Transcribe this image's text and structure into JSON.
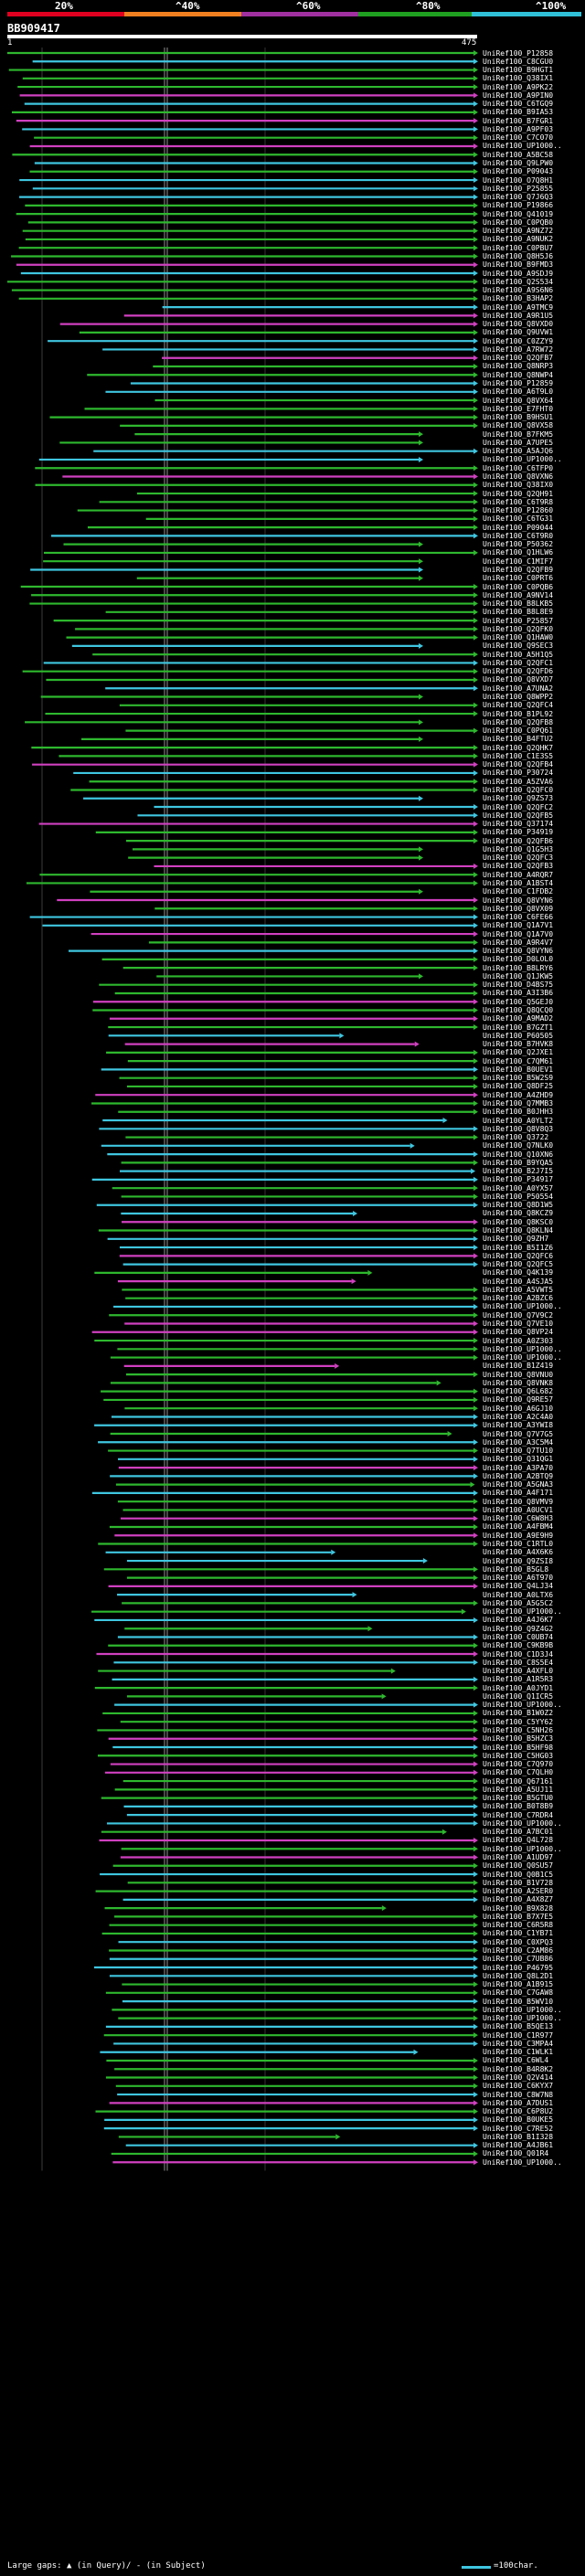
{
  "legend": {
    "labels": [
      "20%",
      "^40%",
      "^60%",
      "^80%",
      "^100%"
    ],
    "colors": [
      "#e00020",
      "#f08020",
      "#a030a0",
      "#20a020",
      "#30c0d8"
    ]
  },
  "query": {
    "id": "BB909417",
    "start": "1",
    "end": "475"
  },
  "series_colors": {
    "green": "#2eb82e",
    "cyan": "#3fc6e0",
    "magenta": "#d040c0"
  },
  "hits": [
    "UniRef100_P12858",
    "UniRef100_C8CGU0",
    "UniRef100_B9HGT1",
    "UniRef100_Q38IX1",
    "UniRef100_A9PK22",
    "UniRef100_A9PIN0",
    "UniRef100_C6TGQ9",
    "UniRef100_B9IA53",
    "UniRef100_B7FGR1",
    "UniRef100_A9PF03",
    "UniRef100_C7C070",
    "UniRef100_UP1000..",
    "UniRef100_A5BC58",
    "UniRef100_Q9LPW0",
    "UniRef100_P09043",
    "UniRef100_O7Q8H1",
    "UniRef100_P25855",
    "UniRef100_Q7J6Q3",
    "UniRef100_P19866",
    "UniRef100_Q41019",
    "UniRef100_C0PQB0",
    "UniRef100_A9NZ72",
    "UniRef100_A9NUK2",
    "UniRef100_C0PBU7",
    "UniRef100_Q8H5J6",
    "UniRef100_B9FMD3",
    "UniRef100_A9SDJ9",
    "UniRef100_Q2S534",
    "UniRef100_A9S6N6",
    "UniRef100_B3HAP2",
    "UniRef100_A9TMC9",
    "UniRef100_A9R1U5",
    "UniRef100_Q8VXD0",
    "UniRef100_Q9UVW1",
    "UniRef100_C0ZZY9",
    "UniRef100_A7RW72",
    "UniRef100_Q2QFB7",
    "UniRef100_Q8NRP3",
    "UniRef100_Q8NWP4",
    "UniRef100_P12859",
    "UniRef100_A6T9L0",
    "UniRef100_Q8VX64",
    "UniRef100_E7FHT0",
    "UniRef100_B9HSU1",
    "UniRef100_Q8VX58",
    "UniRef100_B7FKM5",
    "UniRef100_A7UPE5",
    "UniRef100_A5AJQ6",
    "UniRef100_UP1000..",
    "UniRef100_C6TFP0",
    "UniRef100_Q8VXN6",
    "UniRef100_Q38IX0",
    "UniRef100_Q2QH91",
    "UniRef100_C6T9R8",
    "UniRef100_P12860",
    "UniRef100_C6TG31",
    "UniRef100_P09044",
    "UniRef100_C6T9R0",
    "UniRef100_P50362",
    "UniRef100_Q1HLW6",
    "UniRef100_C1MIF7",
    "UniRef100_Q2QFB9",
    "UniRef100_C0PRT6",
    "UniRef100_C0PQB6",
    "UniRef100_A9NV14",
    "UniRef100_B8LKB5",
    "UniRef100_B8L8E9",
    "UniRef100_P25857",
    "UniRef100_Q2QFK0",
    "UniRef100_Q1HAW0",
    "UniRef100_Q9SEC3",
    "UniRef100_A5H1Q5",
    "UniRef100_Q2QFC1",
    "UniRef100_Q2QFD6",
    "UniRef100_Q8VXD7",
    "UniRef100_A7UNA2",
    "UniRef100_Q8WPP2",
    "UniRef100_Q2QFC4",
    "UniRef100_B1PL92",
    "UniRef100_Q2QFB8",
    "UniRef100_C0PQ61",
    "UniRef100_B4FTU2",
    "UniRef100_Q2QHK7",
    "UniRef100_C1E3S5",
    "UniRef100_Q2QFB4",
    "UniRef100_P30724",
    "UniRef100_A5ZVA6",
    "UniRef100_Q2QFC0",
    "UniRef100_Q9ZS73",
    "UniRef100_Q2QFC2",
    "UniRef100_Q2QFB5",
    "UniRef100_Q37174",
    "UniRef100_P34919",
    "UniRef100_Q2QFB6",
    "UniRef100_Q1G5H3",
    "UniRef100_Q2QFC3",
    "UniRef100_Q2QFB3",
    "UniRef100_A4RQR7",
    "UniRef100_A1BST4",
    "UniRef100_C1FDB2",
    "UniRef100_Q8VYN6",
    "UniRef100_Q8VX09",
    "UniRef100_C6FE66",
    "UniRef100_Q1A7V1",
    "UniRef100_Q1A7V0",
    "UniRef100_A9R4V7",
    "UniRef100_Q8VYN6",
    "UniRef100_D0LOL0",
    "UniRef100_B8LRY6",
    "UniRef100_Q1JKW5",
    "UniRef100_D4BS75",
    "UniRef100_A3I3B6",
    "UniRef100_Q5GEJ0",
    "UniRef100_Q8QCQ0",
    "UniRef100_A9MAD2",
    "UniRef100_B7GZT1",
    "UniRef100_P60505",
    "UniRef100_B7HVK8",
    "UniRef100_Q2JXE1",
    "UniRef100_C7QM61",
    "UniRef100_B0UEV1",
    "UniRef100_B5W2S9",
    "UniRef100_Q8DF25",
    "UniRef100_A4ZHD9",
    "UniRef100_Q7MMB3",
    "UniRef100_B0JHH3",
    "UniRef100_A0YLT2",
    "UniRef100_Q8V8Q3",
    "UniRef100_Q3722",
    "UniRef100_Q7NLK0",
    "UniRef100_Q10XN6",
    "UniRef100_B9YQA5",
    "UniRef100_B2J7I5",
    "UniRef100_P34917",
    "UniRef100_A0YX57",
    "UniRef100_P50554",
    "UniRef100_Q8D1W5",
    "UniRef100_Q8KCZ9",
    "UniRef100_Q8KSC0",
    "UniRef100_Q8KLN4",
    "UniRef100_Q9ZH7",
    "UniRef100_B5I1Z6",
    "UniRef100_Q2QFC6",
    "UniRef100_Q2QFC5",
    "UniRef100_Q4K139",
    "UniRef100_A4SJA5",
    "UniRef100_A5VWT5",
    "UniRef100_A2BZC6",
    "UniRef100_UP1000..",
    "UniRef100_Q7V9C2",
    "UniRef100_Q7VE10",
    "UniRef100_Q8VP24",
    "UniRef100_A0Z303",
    "UniRef100_UP1000..",
    "UniRef100_UP1000..",
    "UniRef100_B1Z419",
    "UniRef100_Q8VNU0",
    "UniRef100_Q8VNK8",
    "UniRef100_Q6L682",
    "UniRef100_Q9RE57",
    "UniRef100_A6GJ10",
    "UniRef100_A2C4A0",
    "UniRef100_A3YWI8",
    "UniRef100_Q7V7G5",
    "UniRef100_A3C5M4",
    "UniRef100_Q7TU10",
    "UniRef100_Q31QG1",
    "UniRef100_A3PA70",
    "UniRef100_A2BTQ9",
    "UniRef100_A5GNA3",
    "UniRef100_A4F171",
    "UniRef100_Q8VMV9",
    "UniRef100_A0UCV1",
    "UniRef100_C6W8H3",
    "UniRef100_A4FBM4",
    "UniRef100_A9E9H9",
    "UniRef100_C1RTL0",
    "UniRef100_A4X6K6",
    "UniRef100_Q9ZSI8",
    "UniRef100_B5GL8",
    "UniRef100_A6T970",
    "UniRef100_Q4LJ34",
    "UniRef100_A0LTX6",
    "UniRef100_A5G5C2",
    "UniRef100_UP1000..",
    "UniRef100_A4J6K7",
    "UniRef100_Q9Z4G2",
    "UniRef100_C0UB74",
    "UniRef100_C9KB9B",
    "UniRef100_C1D3J4",
    "UniRef100_C8S5E4",
    "UniRef100_A4XFL0",
    "UniRef100_A1R5R3",
    "UniRef100_A0JYD1",
    "UniRef100_Q1ICR5",
    "UniRef100_UP1000..",
    "UniRef100_B1W0Z2",
    "UniRef100_C5YY62",
    "UniRef100_C5NH26",
    "UniRef100_B5HZC3",
    "UniRef100_B5HF98",
    "UniRef100_C5HG03",
    "UniRef100_C7Q970",
    "UniRef100_C7QLH0",
    "UniRef100_Q67161",
    "UniRef100_A5UJ11",
    "UniRef100_B5GTU0",
    "UniRef100_B0T8B9",
    "UniRef100_C7RDR4",
    "UniRef100_UP1000..",
    "UniRef100_A7BC01",
    "UniRef100_Q4L728",
    "UniRef100_UP1000..",
    "UniRef100_A1UD97",
    "UniRef100_Q0SU57",
    "UniRef100_Q0B1C5",
    "UniRef100_B1V728",
    "UniRef100_A2SER0",
    "UniRef100_A4X8Z7",
    "UniRef100_B9X828",
    "UniRef100_B7X7E5",
    "UniRef100_C6R5R8",
    "UniRef100_C1YB71",
    "UniRef100_C0XPQ3",
    "UniRef100_C2AM86",
    "UniRef100_C7UB86",
    "UniRef100_P46795",
    "UniRef100_Q8L2D1",
    "UniRef100_A1B915",
    "UniRef100_C7GAW8",
    "UniRef100_B5WV10",
    "UniRef100_UP1000..",
    "UniRef100_UP1000..",
    "UniRef100_B5QE13",
    "UniRef100_C1R977",
    "UniRef100_C3MPA4",
    "UniRef100_C1WLK1",
    "UniRef100_C6WL4",
    "UniRef100_B4R8K2",
    "UniRef100_Q2V414",
    "UniRef100_C6KYX7",
    "UniRef100_C8W7N8",
    "UniRef100_A7DUS1",
    "UniRef100_C6P8U2",
    "UniRef100_B0UKE5",
    "UniRef100_C7RE52",
    "UniRef100_B1I328",
    "UniRef100_A4JB61",
    "UniRef100_Q01R4",
    "UniRef100_UP1000.."
  ],
  "footer": {
    "large_gaps_label": "Large gaps:",
    "in_query_label": "(in Query)/",
    "in_subject_label": "(in Subject)",
    "scale_label": "=100char."
  }
}
